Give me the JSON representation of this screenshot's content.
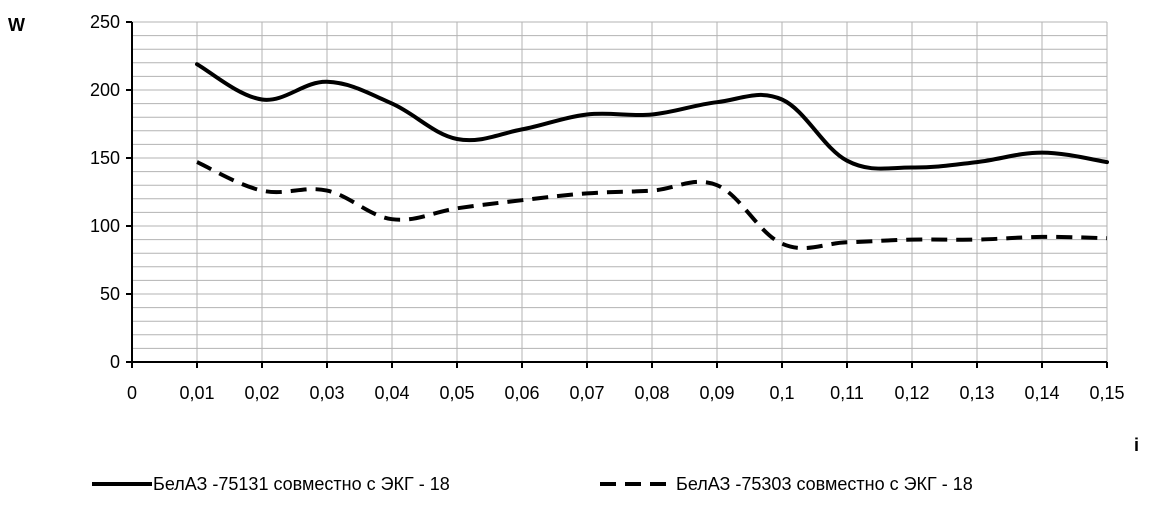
{
  "chart_data": {
    "type": "line",
    "ylabel": "W",
    "xlabel": "i",
    "ylim": [
      0,
      250
    ],
    "y_ticks": [
      "0",
      "50",
      "100",
      "150",
      "200",
      "250"
    ],
    "x_ticks": [
      "0",
      "0,01",
      "0,02",
      "0,03",
      "0,04",
      "0,05",
      "0,06",
      "0,07",
      "0,08",
      "0,09",
      "0,1",
      "0,11",
      "0,12",
      "0,13",
      "0,14",
      "0,15"
    ],
    "grid": true,
    "legend_position": "bottom",
    "series": [
      {
        "name": "БелАЗ -75131 совместно с ЭКГ - 18",
        "style": "solid",
        "color": "#000000",
        "x": [
          0.01,
          0.02,
          0.03,
          0.04,
          0.05,
          0.06,
          0.07,
          0.08,
          0.09,
          0.1,
          0.11,
          0.12,
          0.13,
          0.14,
          0.15
        ],
        "y": [
          219,
          193,
          206,
          190,
          164,
          171,
          182,
          182,
          191,
          193,
          148,
          143,
          147,
          154,
          147
        ]
      },
      {
        "name": "БелАЗ -75303 совместно с ЭКГ - 18",
        "style": "dashed",
        "color": "#000000",
        "x": [
          0.01,
          0.02,
          0.03,
          0.04,
          0.05,
          0.06,
          0.07,
          0.08,
          0.09,
          0.1,
          0.11,
          0.12,
          0.13,
          0.14,
          0.15
        ],
        "y": [
          147,
          126,
          126,
          105,
          113,
          119,
          124,
          126,
          130,
          87,
          88,
          90,
          90,
          92,
          91
        ]
      }
    ]
  }
}
